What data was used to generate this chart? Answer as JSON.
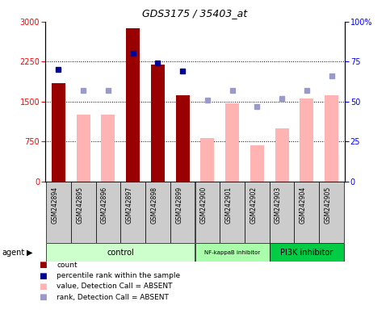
{
  "title": "GDS3175 / 35403_at",
  "samples": [
    "GSM242894",
    "GSM242895",
    "GSM242896",
    "GSM242897",
    "GSM242898",
    "GSM242899",
    "GSM242900",
    "GSM242901",
    "GSM242902",
    "GSM242903",
    "GSM242904",
    "GSM242905"
  ],
  "count_present": [
    1850,
    null,
    null,
    2880,
    2200,
    1620,
    null,
    null,
    null,
    null,
    null,
    null
  ],
  "count_absent": [
    null,
    1250,
    1250,
    null,
    null,
    null,
    820,
    1460,
    680,
    1000,
    1560,
    1620
  ],
  "rank_present": [
    70,
    null,
    null,
    80,
    74,
    69,
    null,
    null,
    null,
    null,
    null,
    null
  ],
  "rank_absent": [
    null,
    57,
    57,
    null,
    null,
    null,
    51,
    57,
    47,
    52,
    57,
    66
  ],
  "ylim_left": [
    0,
    3000
  ],
  "ylim_right": [
    0,
    100
  ],
  "yticks_left": [
    0,
    750,
    1500,
    2250,
    3000
  ],
  "yticks_right": [
    0,
    25,
    50,
    75,
    100
  ],
  "dark_red": "#990000",
  "light_pink": "#ffb3b3",
  "dark_blue": "#000099",
  "light_blue": "#9999cc",
  "group_control_color": "#ccffcc",
  "group_nfkb_color": "#aaffaa",
  "group_pi3k_color": "#00cc44",
  "groups": [
    {
      "label": "control",
      "start": 0,
      "end": 5
    },
    {
      "label": "NF-kappaB inhibitor",
      "start": 6,
      "end": 8
    },
    {
      "label": "PI3K inhibitor",
      "start": 9,
      "end": 11
    }
  ]
}
